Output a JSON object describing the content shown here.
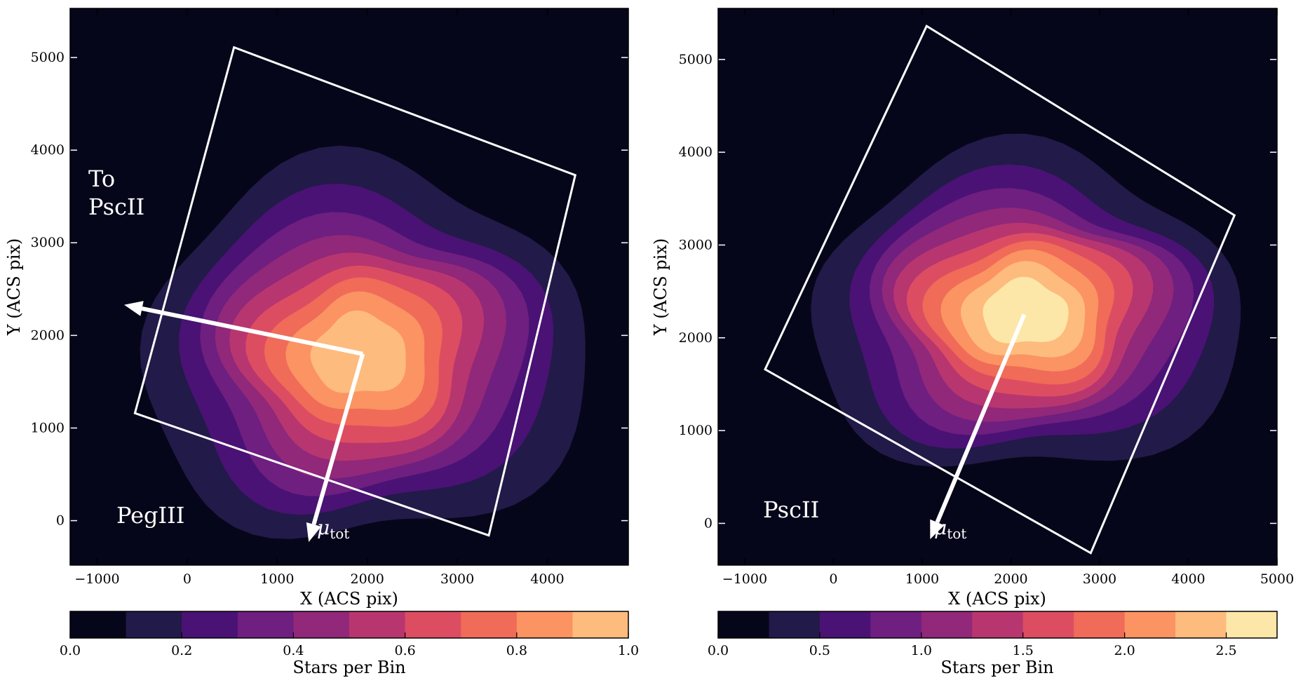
{
  "chart_data": [
    {
      "type": "heatmap",
      "title": "",
      "xlabel": "X (ACS pix)",
      "ylabel": "Y (ACS pix)",
      "xlim": [
        -1300,
        4900
      ],
      "ylim": [
        -480,
        5530
      ],
      "xticks": [
        -1000,
        0,
        1000,
        2000,
        3000,
        4000
      ],
      "yticks": [
        0,
        1000,
        2000,
        3000,
        4000,
        5000
      ],
      "grid": false,
      "background": "#06061a",
      "density_center": [
        1950,
        1800
      ],
      "density_peak": 1.0,
      "contour_levels": [
        0.1,
        0.2,
        0.3,
        0.4,
        0.5,
        0.6,
        0.7,
        0.8,
        0.9
      ],
      "footprint_corners": [
        [
          520,
          5110
        ],
        [
          4310,
          3730
        ],
        [
          3350,
          -160
        ],
        [
          -580,
          1160
        ]
      ],
      "vectors": [
        {
          "label": "To PscII",
          "from": [
            1950,
            1800
          ],
          "to": [
            -700,
            2330
          ]
        },
        {
          "label": "μtot",
          "from": [
            1950,
            1800
          ],
          "to": [
            1350,
            -230
          ],
          "label_text": "μ",
          "label_sub": "tot"
        }
      ],
      "annotations": {
        "to_line1": "To",
        "to_line2": "PscII",
        "galaxy": "PegIII"
      },
      "colorbar": {
        "label": "Stars per Bin",
        "min": 0.0,
        "max": 1.0,
        "bins": 10,
        "ticks": [
          "0.0",
          "0.2",
          "0.4",
          "0.6",
          "0.8",
          "1.0"
        ]
      }
    },
    {
      "type": "heatmap",
      "title": "",
      "xlabel": "X (ACS pix)",
      "ylabel": "Y (ACS pix)",
      "xlim": [
        -1300,
        5000
      ],
      "ylim": [
        -450,
        5550
      ],
      "xticks": [
        -1000,
        0,
        1000,
        2000,
        3000,
        4000,
        5000
      ],
      "yticks": [
        0,
        1000,
        2000,
        3000,
        4000,
        5000
      ],
      "grid": false,
      "background": "#06061a",
      "density_center": [
        2150,
        2250
      ],
      "density_peak": 2.75,
      "contour_levels": [
        0.25,
        0.5,
        0.75,
        1.0,
        1.25,
        1.5,
        1.75,
        2.0,
        2.25,
        2.5
      ],
      "footprint_corners": [
        [
          1050,
          5360
        ],
        [
          4520,
          3320
        ],
        [
          2900,
          -320
        ],
        [
          -770,
          1660
        ]
      ],
      "vectors": [
        {
          "label": "μtot",
          "from": [
            2150,
            2250
          ],
          "to": [
            1090,
            -170
          ],
          "label_text": "μ",
          "label_sub": "tot"
        }
      ],
      "annotations": {
        "galaxy": "PscII"
      },
      "colorbar": {
        "label": "Stars per Bin",
        "min": 0.0,
        "max": 2.75,
        "bins": 11,
        "ticks": [
          "0.0",
          "0.5",
          "1.0",
          "1.5",
          "2.0",
          "2.5"
        ]
      }
    }
  ],
  "colors": {
    "cmap": [
      "#06061a",
      "#221a48",
      "#4a1274",
      "#6e1f80",
      "#91287a",
      "#b8366f",
      "#dd4d62",
      "#f06b58",
      "#fb9363",
      "#febb7e",
      "#fde7a8"
    ],
    "footprint": "#ffffff",
    "arrow": "#ffffff"
  }
}
